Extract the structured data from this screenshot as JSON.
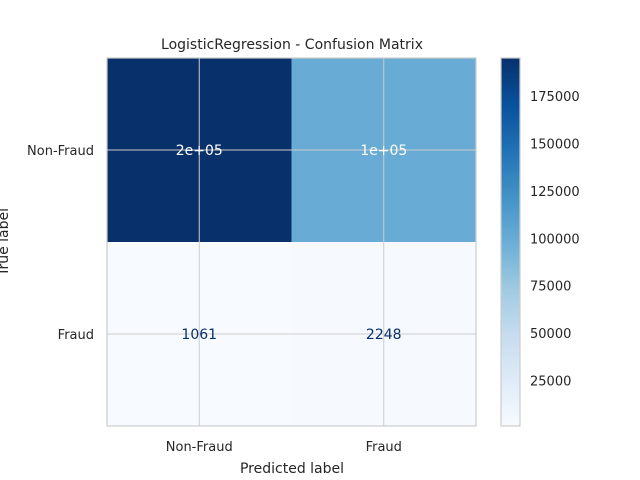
{
  "chart_data": {
    "type": "heatmap",
    "title": "LogisticRegression - Confusion Matrix",
    "xlabel": "Predicted label",
    "ylabel": "True label",
    "x_categories": [
      "Non-Fraud",
      "Fraud"
    ],
    "y_categories": [
      "Non-Fraud",
      "Fraud"
    ],
    "values": [
      [
        195000,
        100000
      ],
      [
        1061,
        2248
      ]
    ],
    "cell_labels": [
      [
        "2e+05",
        "1e+05"
      ],
      [
        "1061",
        "2248"
      ]
    ],
    "colormap": "Blues",
    "colorbar": {
      "range": [
        1061,
        195000
      ],
      "ticks": [
        25000,
        50000,
        75000,
        100000,
        125000,
        150000,
        175000
      ],
      "tick_labels": [
        "25000",
        "50000",
        "75000",
        "100000",
        "125000",
        "150000",
        "175000"
      ]
    },
    "grid": true,
    "colors": {
      "light_text": "#ffffff",
      "dark_text": "#08306b"
    }
  }
}
